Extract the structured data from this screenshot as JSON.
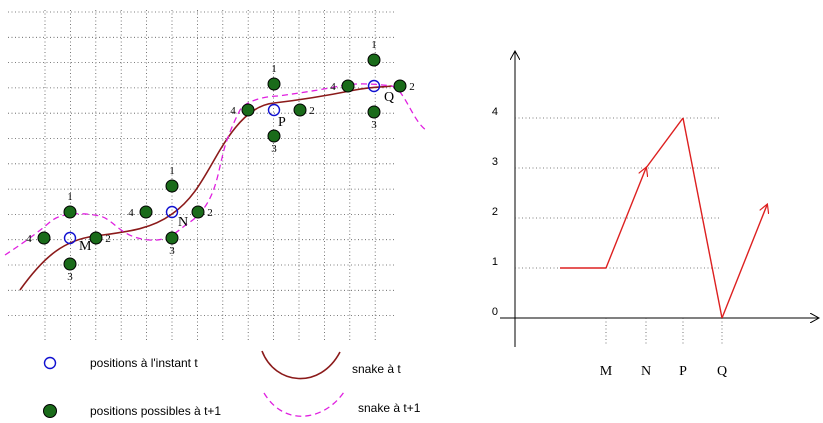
{
  "colors": {
    "grid": "#555555",
    "snake": "#8b1a1a",
    "snake_next": "#e020e0",
    "position": "#1010d0",
    "possible": "#1a6b1a",
    "bars": "#dd2020"
  },
  "points": {
    "M": "M",
    "N": "N",
    "P": "P",
    "Q": "Q"
  },
  "neighbor_numbers": [
    "1",
    "2",
    "3",
    "4"
  ],
  "legend": {
    "positions_t": "positions à l'instant t",
    "positions_possible": "positions possibles à t+1",
    "snake_t": "snake à t",
    "snake_t1": "snake à t+1"
  },
  "chart_data": {
    "type": "line",
    "categories": [
      "M",
      "N",
      "P",
      "Q"
    ],
    "y_ticks": [
      "0",
      "1",
      "2",
      "3",
      "4"
    ],
    "values": [
      1,
      3,
      4,
      0
    ],
    "ylim": [
      0,
      4
    ]
  }
}
